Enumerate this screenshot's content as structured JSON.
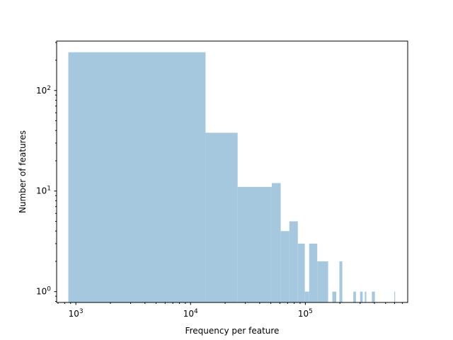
{
  "chart_data": {
    "type": "bar",
    "xlabel": "Frequency per feature",
    "ylabel": "Number of features",
    "xscale": "log",
    "yscale": "log",
    "xlim": [
      680,
      780000
    ],
    "ylim": [
      0.78,
      310
    ],
    "grid": false,
    "bar_color": "#a6c8df",
    "x_ticks": [
      {
        "value": 1000,
        "base": "10",
        "exp": "3"
      },
      {
        "value": 10000,
        "base": "10",
        "exp": "4"
      },
      {
        "value": 100000,
        "base": "10",
        "exp": "5"
      }
    ],
    "y_ticks": [
      {
        "value": 1,
        "base": "10",
        "exp": "0"
      },
      {
        "value": 10,
        "base": "10",
        "exp": "1"
      },
      {
        "value": 100,
        "base": "10",
        "exp": "2"
      }
    ],
    "bins": [
      {
        "x0": 860,
        "x1": 13500,
        "value": 240
      },
      {
        "x0": 13500,
        "x1": 25700,
        "value": 38
      },
      {
        "x0": 25700,
        "x1": 51000,
        "value": 11
      },
      {
        "x0": 51000,
        "x1": 61000,
        "value": 12
      },
      {
        "x0": 61000,
        "x1": 72500,
        "value": 4
      },
      {
        "x0": 72500,
        "x1": 86000,
        "value": 5
      },
      {
        "x0": 86000,
        "x1": 99000,
        "value": 3
      },
      {
        "x0": 99000,
        "x1": 108000,
        "value": 1
      },
      {
        "x0": 108000,
        "x1": 127000,
        "value": 3
      },
      {
        "x0": 127000,
        "x1": 158000,
        "value": 2
      },
      {
        "x0": 172000,
        "x1": 186000,
        "value": 1
      },
      {
        "x0": 198000,
        "x1": 210000,
        "value": 2
      },
      {
        "x0": 262000,
        "x1": 276000,
        "value": 1
      },
      {
        "x0": 300000,
        "x1": 316000,
        "value": 1
      },
      {
        "x0": 330000,
        "x1": 340000,
        "value": 1
      },
      {
        "x0": 380000,
        "x1": 404000,
        "value": 1
      },
      {
        "x0": 596000,
        "x1": 606000,
        "value": 1
      }
    ]
  }
}
